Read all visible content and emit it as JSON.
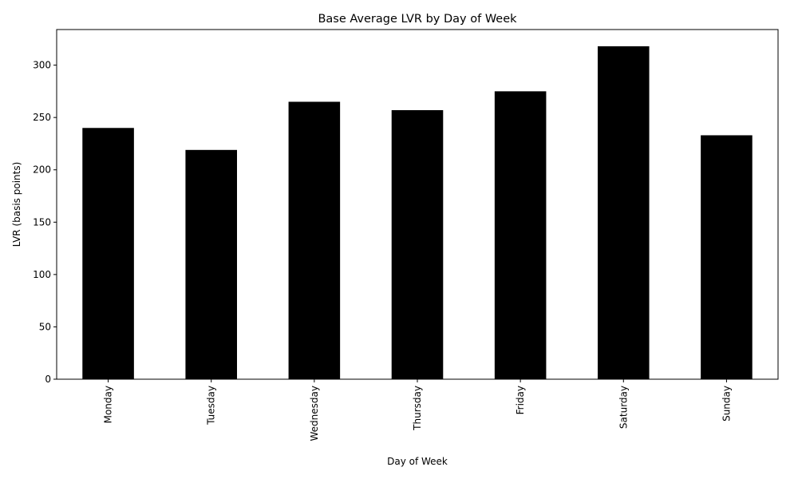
{
  "chart_data": {
    "type": "bar",
    "title": "Base Average LVR by Day of Week",
    "xlabel": "Day of Week",
    "ylabel": "LVR (basis points)",
    "categories": [
      "Monday",
      "Tuesday",
      "Wednesday",
      "Thursday",
      "Friday",
      "Saturday",
      "Sunday"
    ],
    "values": [
      240,
      219,
      265,
      257,
      275,
      318,
      233
    ],
    "ylim": [
      0,
      334
    ],
    "yticks": [
      0,
      50,
      100,
      150,
      200,
      250,
      300
    ],
    "grid": false,
    "legend": "none",
    "bar_color": "#000000"
  }
}
